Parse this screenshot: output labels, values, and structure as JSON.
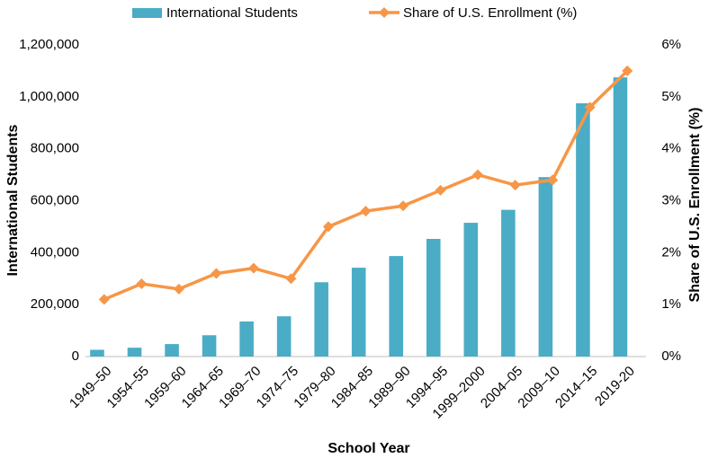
{
  "chart_data": {
    "type": "combo",
    "x_label": "School Year",
    "y_label": "International Students",
    "y2_label": "Share of U.S. Enrollment (%)",
    "categories": [
      "1949–50",
      "1954–55",
      "1959–60",
      "1964–65",
      "1969–70",
      "1974–75",
      "1979–80",
      "1984–85",
      "1989–90",
      "1994–95",
      "1999–2000",
      "2004–05",
      "2009–10",
      "2014–15",
      "2019-20"
    ],
    "series": [
      {
        "name": "International Students",
        "type": "bar",
        "color": "#4bacc6",
        "values": [
          26000,
          34000,
          48000,
          82000,
          135000,
          155000,
          286000,
          342000,
          387000,
          453000,
          515000,
          565000,
          691000,
          975000,
          1075000
        ]
      },
      {
        "name": "Share of U.S. Enrollment (%)",
        "type": "line",
        "axis": "y2",
        "color": "#f79646",
        "values": [
          1.1,
          1.4,
          1.3,
          1.6,
          1.7,
          1.5,
          2.5,
          2.8,
          2.9,
          3.2,
          3.5,
          3.3,
          3.4,
          4.8,
          5.5
        ]
      }
    ],
    "ylim": [
      0,
      1200000
    ],
    "yticks": [
      0,
      {
        "value": 200000,
        "label": "200,000"
      },
      {
        "value": 400000,
        "label": "400,000"
      },
      {
        "value": 600000,
        "label": "600,000"
      },
      {
        "value": 800000,
        "label": "800,000"
      },
      {
        "value": 1000000,
        "label": "1,000,000"
      },
      {
        "value": 1200000,
        "label": "1,200,000"
      }
    ],
    "y2lim": [
      0,
      6
    ],
    "y2ticks": [
      {
        "value": 0,
        "label": "0%"
      },
      {
        "value": 1,
        "label": "1%"
      },
      {
        "value": 2,
        "label": "2%"
      },
      {
        "value": 3,
        "label": "3%"
      },
      {
        "value": 4,
        "label": "4%"
      },
      {
        "value": 5,
        "label": "5%"
      },
      {
        "value": 6,
        "label": "6%"
      }
    ],
    "grid": false
  }
}
